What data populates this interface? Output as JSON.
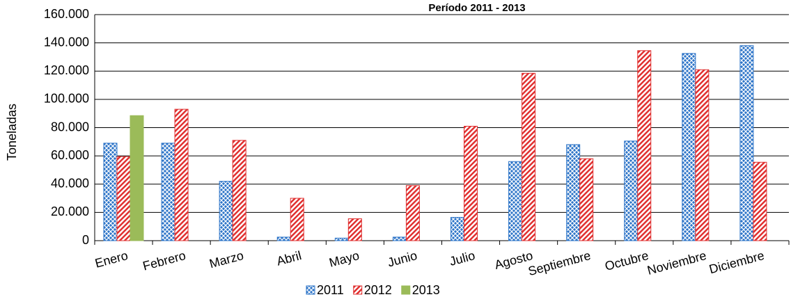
{
  "chart_data": {
    "type": "bar",
    "title": "Período  2011 - 2013",
    "y_label": "Toneladas",
    "categories": [
      "Enero",
      "Febrero",
      "Marzo",
      "Abril",
      "Mayo",
      "Junio",
      "Julio",
      "Agosto",
      "Septiembre",
      "Octubre",
      "Noviembre",
      "Diciembre"
    ],
    "series": [
      {
        "name": "2011",
        "color": "#2e75c8",
        "values": [
          69000,
          69000,
          42000,
          2500,
          1800,
          2500,
          16500,
          56000,
          68000,
          70500,
          132500,
          138000
        ]
      },
      {
        "name": "2012",
        "color": "#e03030",
        "values": [
          59500,
          93000,
          71000,
          30000,
          15500,
          39000,
          81000,
          118500,
          58000,
          134500,
          121000,
          55500
        ]
      },
      {
        "name": "2013",
        "color": "#9bbb59",
        "values": [
          88500,
          null,
          null,
          null,
          null,
          null,
          null,
          null,
          null,
          null,
          null,
          null
        ]
      }
    ],
    "ylim": [
      0,
      160000
    ],
    "yticks": [
      0,
      {
        "value": 20000,
        "label": "20.000"
      },
      {
        "value": 40000,
        "label": "40.000"
      },
      {
        "value": 60000,
        "label": "60.000"
      },
      {
        "value": 80000,
        "label": "80.000"
      },
      {
        "value": 100000,
        "label": "100.000"
      },
      {
        "value": 120000,
        "label": "120.000"
      },
      {
        "value": 140000,
        "label": "140.000"
      },
      {
        "value": 160000,
        "label": "160.000"
      }
    ],
    "grid": true,
    "legend": "bottom"
  }
}
